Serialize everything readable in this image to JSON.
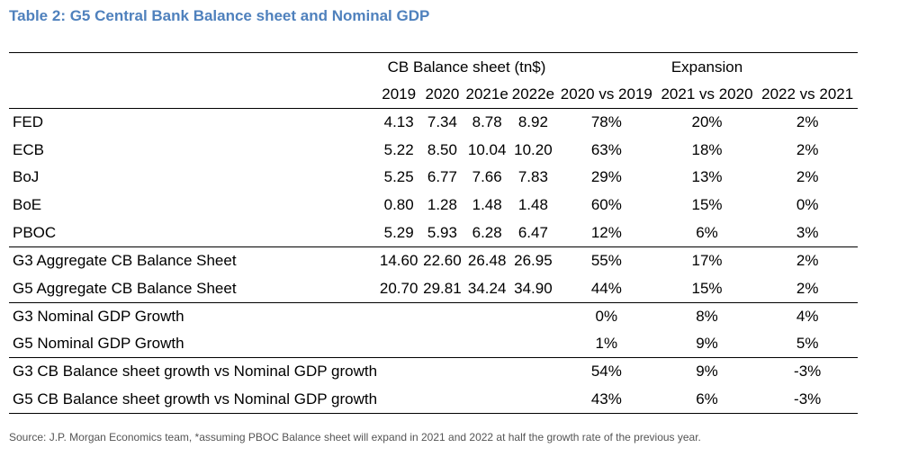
{
  "title": "Table 2: G5 Central Bank Balance sheet and Nominal GDP",
  "header": {
    "group_cb": "CB Balance sheet (tn$)",
    "group_exp": "Expansion",
    "columns": [
      "2019",
      "2020",
      "2021e",
      "2022e",
      "2020 vs 2019",
      "2021 vs 2020",
      "2022 vs 2021"
    ]
  },
  "rows": [
    {
      "label": "FED",
      "values": [
        "4.13",
        "7.34",
        "8.78",
        "8.92",
        "78%",
        "20%",
        "2%"
      ]
    },
    {
      "label": "ECB",
      "values": [
        "5.22",
        "8.50",
        "10.04",
        "10.20",
        "63%",
        "18%",
        "2%"
      ]
    },
    {
      "label": "BoJ",
      "values": [
        "5.25",
        "6.77",
        "7.66",
        "7.83",
        "29%",
        "13%",
        "2%"
      ]
    },
    {
      "label": "BoE",
      "values": [
        "0.80",
        "1.28",
        "1.48",
        "1.48",
        "60%",
        "15%",
        "0%"
      ]
    },
    {
      "label": "PBOC",
      "values": [
        "5.29",
        "5.93",
        "6.28",
        "6.47",
        "12%",
        "6%",
        "3%"
      ]
    },
    {
      "label": "G3 Aggregate CB Balance Sheet",
      "values": [
        "14.60",
        "22.60",
        "26.48",
        "26.95",
        "55%",
        "17%",
        "2%"
      ]
    },
    {
      "label": "G5 Aggregate CB Balance Sheet",
      "values": [
        "20.70",
        "29.81",
        "34.24",
        "34.90",
        "44%",
        "15%",
        "2%"
      ]
    },
    {
      "label": "G3 Nominal GDP Growth",
      "values": [
        "",
        "",
        "",
        "",
        "0%",
        "8%",
        "4%"
      ]
    },
    {
      "label": "G5 Nominal GDP Growth",
      "values": [
        "",
        "",
        "",
        "",
        "1%",
        "9%",
        "5%"
      ]
    },
    {
      "label": "G3 CB Balance sheet growth vs Nominal GDP growth",
      "values": [
        "",
        "",
        "",
        "",
        "54%",
        "9%",
        "-3%"
      ]
    },
    {
      "label": "G5 CB Balance sheet growth vs Nominal GDP growth",
      "values": [
        "",
        "",
        "",
        "",
        "43%",
        "6%",
        "-3%"
      ]
    }
  ],
  "source": "Source: J.P. Morgan Economics team, *assuming PBOC Balance sheet will expand in 2021 and 2022 at half the growth rate of the previous year."
}
